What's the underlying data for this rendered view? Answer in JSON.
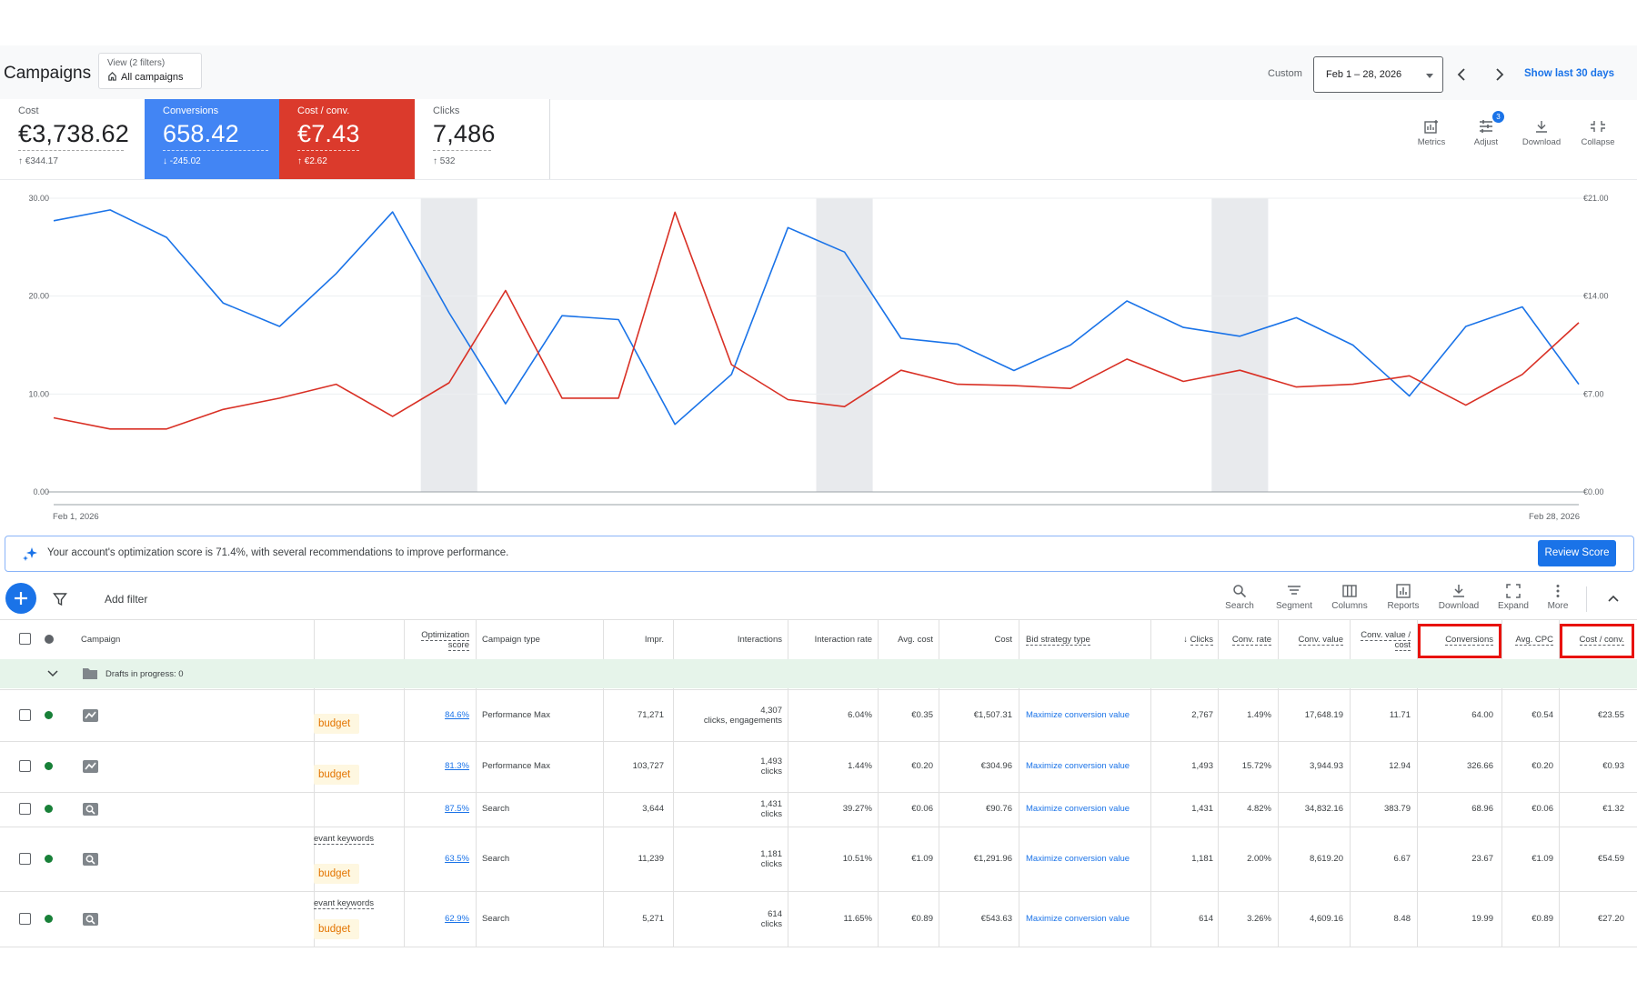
{
  "header": {
    "title": "Campaigns",
    "view_label": "View (2 filters)",
    "view_value": "All campaigns",
    "date_mode": "Custom",
    "date_range": "Feb 1 – 28, 2026",
    "show_last": "Show last 30 days"
  },
  "metrics": [
    {
      "label": "Cost",
      "value": "€3,738.62",
      "delta": "€344.17",
      "delta_dir": "up"
    },
    {
      "label": "Conversions",
      "value": "658.42",
      "delta": "-245.02",
      "delta_dir": "down",
      "color": "#4285f4"
    },
    {
      "label": "Cost / conv.",
      "value": "€7.43",
      "delta": "€2.62",
      "delta_dir": "up",
      "color": "#db3a2c"
    },
    {
      "label": "Clicks",
      "value": "7,486",
      "delta": "532",
      "delta_dir": "up"
    }
  ],
  "toolbar": {
    "metrics": "Metrics",
    "adjust": "Adjust",
    "adjust_badge": "3",
    "download": "Download",
    "collapse": "Collapse"
  },
  "chart_data": {
    "type": "line",
    "x_start_label": "Feb 1, 2026",
    "x_end_label": "Feb 28, 2026",
    "left_axis_ticks": [
      "0.00",
      "10.00",
      "20.00",
      "30.00"
    ],
    "right_axis_ticks": [
      "€0.00",
      "€7.00",
      "€14.00",
      "€21.00"
    ],
    "ylim_left": [
      0,
      30
    ],
    "ylim_right": [
      0,
      21
    ],
    "shaded_weeks": [
      [
        7,
        8
      ],
      [
        14,
        15
      ],
      [
        21,
        22
      ]
    ],
    "series": [
      {
        "name": "Conversions",
        "color": "#1a73e8",
        "axis": "left",
        "values": [
          27.7,
          28.8,
          26.0,
          19.3,
          16.9,
          22.3,
          28.6,
          18.3,
          9.0,
          18.0,
          17.6,
          6.9,
          12.0,
          27.0,
          24.5,
          15.7,
          15.1,
          12.4,
          15.0,
          19.5,
          16.8,
          15.9,
          17.8,
          15.0,
          9.8,
          16.9,
          18.9,
          11.0
        ]
      },
      {
        "name": "Cost / conv.",
        "color": "#d93025",
        "axis": "right",
        "values": [
          5.3,
          4.5,
          4.5,
          5.9,
          6.7,
          7.7,
          5.4,
          7.8,
          14.4,
          6.7,
          6.7,
          20.0,
          9.1,
          6.6,
          6.1,
          8.7,
          7.7,
          7.6,
          7.4,
          9.5,
          7.9,
          8.7,
          7.5,
          7.7,
          8.3,
          6.2,
          8.4,
          12.1
        ]
      }
    ]
  },
  "optimization": {
    "text": "Your account's optimization score is 71.4%, with several recommendations to improve performance.",
    "button": "Review Score"
  },
  "table_toolbar": {
    "add_filter": "Add filter",
    "search": "Search",
    "segment": "Segment",
    "columns": "Columns",
    "reports": "Reports",
    "download": "Download",
    "expand": "Expand",
    "more": "More"
  },
  "table": {
    "headers": {
      "campaign": "Campaign",
      "opt_score_1": "Optimization",
      "opt_score_2": "score",
      "campaign_type": "Campaign type",
      "impr": "Impr.",
      "interactions": "Interactions",
      "interaction_rate": "Interaction rate",
      "avg_cost": "Avg. cost",
      "cost": "Cost",
      "bid_strategy": "Bid strategy type",
      "clicks": "Clicks",
      "conv_rate": "Conv. rate",
      "conv_value": "Conv. value",
      "conv_value_cost_1": "Conv. value /",
      "conv_value_cost_2": "cost",
      "conversions": "Conversions",
      "avg_cpc": "Avg. CPC",
      "cost_conv": "Cost / conv."
    },
    "drafts": "Drafts in progress: 0",
    "budget_label": "budget",
    "rows": [
      {
        "kw": "",
        "budget": true,
        "opt": "84.6%",
        "type": "Performance Max",
        "impr": "71,271",
        "inter": "4,307",
        "inter_sub": "clicks, engagements",
        "rate": "6.04%",
        "avg_cost": "€0.35",
        "cost": "€1,507.31",
        "bid": "Maximize conversion value",
        "clicks": "2,767",
        "conv_rate": "1.49%",
        "conv_value": "17,648.19",
        "vcost": "11.71",
        "conv": "64.00",
        "cpc": "€0.54",
        "cpa": "€23.55"
      },
      {
        "kw": "",
        "budget": true,
        "opt": "81.3%",
        "type": "Performance Max",
        "impr": "103,727",
        "inter": "1,493",
        "inter_sub": "clicks",
        "rate": "1.44%",
        "avg_cost": "€0.20",
        "cost": "€304.96",
        "bid": "Maximize conversion value",
        "clicks": "1,493",
        "conv_rate": "15.72%",
        "conv_value": "3,944.93",
        "vcost": "12.94",
        "conv": "326.66",
        "cpc": "€0.20",
        "cpa": "€0.93"
      },
      {
        "kw": "",
        "budget": false,
        "opt": "87.5%",
        "type": "Search",
        "impr": "3,644",
        "inter": "1,431",
        "inter_sub": "clicks",
        "rate": "39.27%",
        "avg_cost": "€0.06",
        "cost": "€90.76",
        "bid": "Maximize conversion value",
        "clicks": "1,431",
        "conv_rate": "4.82%",
        "conv_value": "34,832.16",
        "vcost": "383.79",
        "conv": "68.96",
        "cpc": "€0.06",
        "cpa": "€1.32"
      },
      {
        "kw": "evant keywords",
        "budget": true,
        "opt": "63.5%",
        "type": "Search",
        "impr": "11,239",
        "inter": "1,181",
        "inter_sub": "clicks",
        "rate": "10.51%",
        "avg_cost": "€1.09",
        "cost": "€1,291.96",
        "bid": "Maximize conversion value",
        "clicks": "1,181",
        "conv_rate": "2.00%",
        "conv_value": "8,619.20",
        "vcost": "6.67",
        "conv": "23.67",
        "cpc": "€1.09",
        "cpa": "€54.59"
      },
      {
        "kw": "evant keywords",
        "budget": true,
        "opt": "62.9%",
        "type": "Search",
        "impr": "5,271",
        "inter": "614",
        "inter_sub": "clicks",
        "rate": "11.65%",
        "avg_cost": "€0.89",
        "cost": "€543.63",
        "bid": "Maximize conversion value",
        "clicks": "614",
        "conv_rate": "3.26%",
        "conv_value": "4,609.16",
        "vcost": "8.48",
        "conv": "19.99",
        "cpc": "€0.89",
        "cpa": "€27.20"
      }
    ]
  }
}
